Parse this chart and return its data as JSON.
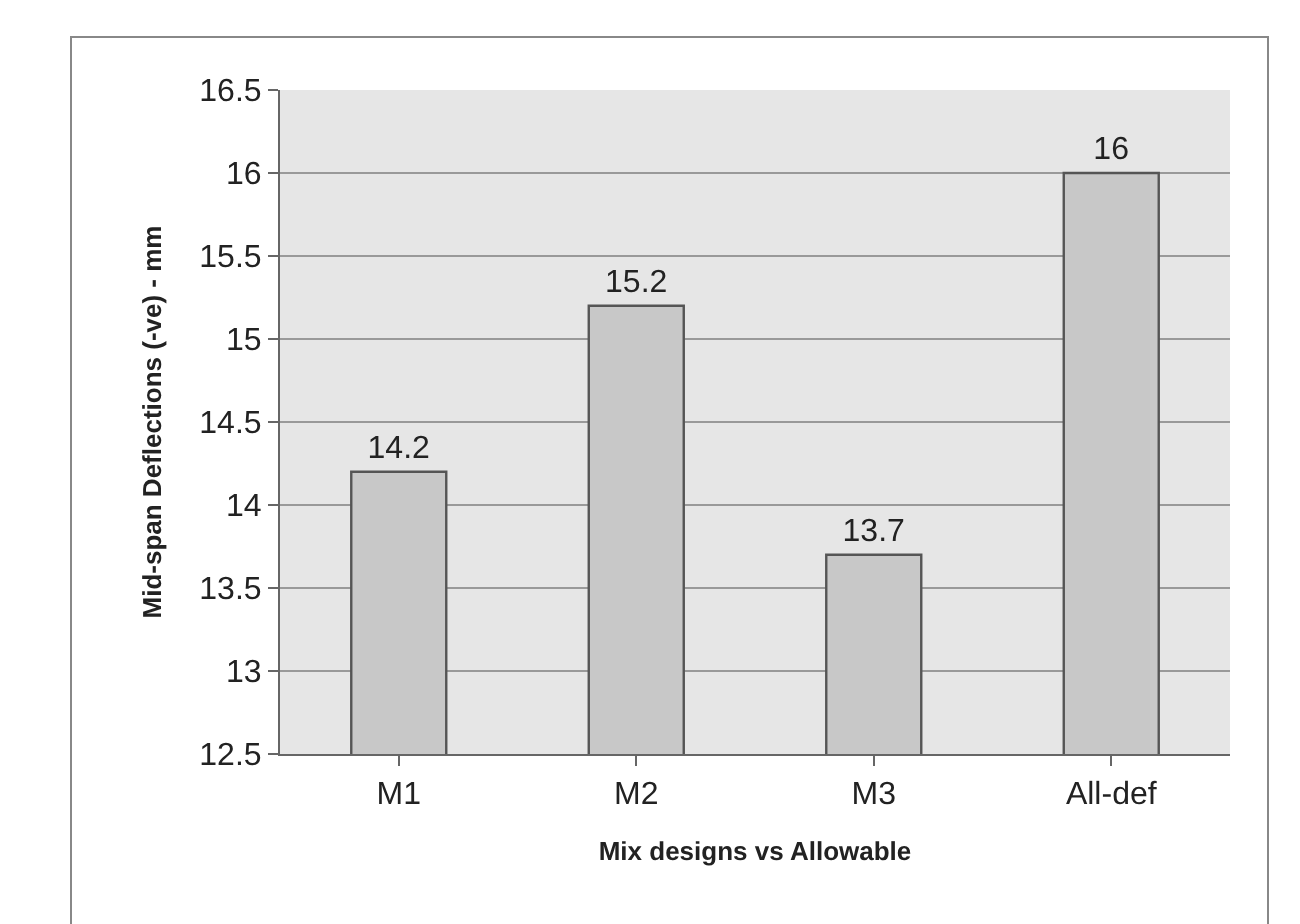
{
  "chart_data": {
    "type": "bar",
    "xlabel": "Mix designs vs Allowable",
    "ylabel": "Mid-span Deflections (-ve) - mm",
    "categories": [
      "M1",
      "M2",
      "M3",
      "All-def"
    ],
    "values": [
      14.2,
      15.2,
      13.7,
      16
    ],
    "color": "#c8c8c8",
    "ylim": [
      12.5,
      16.5
    ],
    "yticks": [
      12.5,
      13,
      13.5,
      14,
      14.5,
      15,
      15.5,
      16,
      16.5
    ],
    "grid": "y",
    "data_labels": true
  }
}
